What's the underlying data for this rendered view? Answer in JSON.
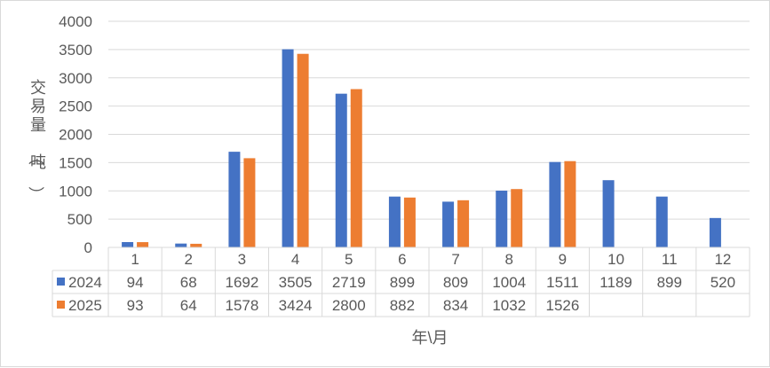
{
  "chart_data": {
    "type": "bar",
    "categories": [
      "1",
      "2",
      "3",
      "4",
      "5",
      "6",
      "7",
      "8",
      "9",
      "10",
      "11",
      "12"
    ],
    "series": [
      {
        "name": "2024",
        "color": "#4472C4",
        "values": [
          94,
          68,
          1692,
          3505,
          2719,
          899,
          809,
          1004,
          1511,
          1189,
          899,
          520
        ]
      },
      {
        "name": "2025",
        "color": "#ED7D31",
        "values": [
          93,
          64,
          1578,
          3424,
          2800,
          882,
          834,
          1032,
          1526,
          null,
          null,
          null
        ]
      }
    ],
    "ylabel": "交易量（吨）",
    "xlabel": "年\\月",
    "ylim": [
      0,
      4000
    ],
    "yticks": [
      0,
      500,
      1000,
      1500,
      2000,
      2500,
      3000,
      3500,
      4000
    ],
    "grid": true,
    "legend": "data-table"
  }
}
